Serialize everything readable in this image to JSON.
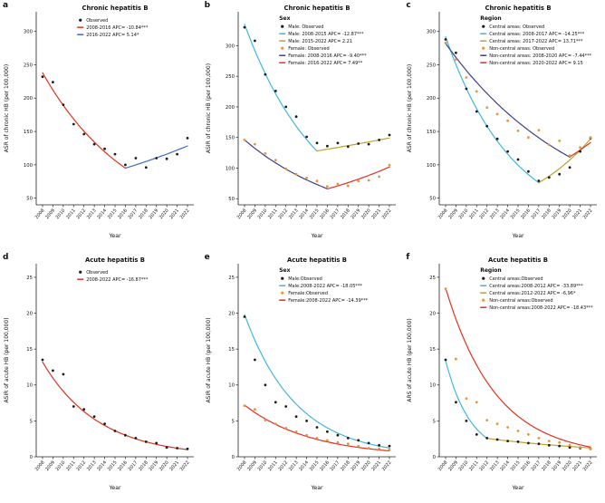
{
  "chart_data": [
    {
      "id": "a",
      "label": "a",
      "type": "scatter+line",
      "title": "Chronic hepatitis B",
      "legend_title": "",
      "xlabel": "Year",
      "ylabel": "ASR of chronic HB (per 100,000)",
      "x": [
        2008,
        2009,
        2010,
        2011,
        2012,
        2013,
        2014,
        2015,
        2016,
        2017,
        2018,
        2019,
        2020,
        2021,
        2022
      ],
      "ylim": [
        40,
        320
      ],
      "yticks": [
        50,
        100,
        150,
        200,
        250,
        300
      ],
      "grid": false,
      "legend_position": "top-inside",
      "series": [
        {
          "name": "Observed",
          "kind": "scatter",
          "color": "#1b1b1b",
          "values": [
            232,
            224,
            190,
            161,
            146,
            131,
            124,
            116,
            100,
            110,
            96,
            110,
            109,
            116,
            140
          ]
        },
        {
          "name": "2008-2016 APC= -10.84***",
          "kind": "line",
          "color": "#e0321f",
          "range": [
            2008,
            2016
          ],
          "start": 238,
          "apc": -10.84
        },
        {
          "name": "2016-2022 APC= 5.14*",
          "kind": "line",
          "color": "#3f6ac4",
          "range": [
            2016,
            2022
          ],
          "start": 95,
          "apc": 5.14
        }
      ]
    },
    {
      "id": "b",
      "label": "b",
      "type": "scatter+line",
      "title": "Chronic hepatitis B",
      "legend_title": "Sex",
      "xlabel": "Year",
      "ylabel": "ASIR of chronic HB (per 100,000)",
      "x": [
        2008,
        2009,
        2010,
        2011,
        2012,
        2013,
        2014,
        2015,
        2016,
        2017,
        2018,
        2019,
        2020,
        2021,
        2022
      ],
      "ylim": [
        40,
        345
      ],
      "yticks": [
        50,
        100,
        150,
        200,
        250,
        300
      ],
      "grid": false,
      "legend_position": "top-inside",
      "series": [
        {
          "name": "Male: Observed",
          "kind": "scatter",
          "color": "#1b1b1b",
          "values": [
            330,
            308,
            253,
            226,
            200,
            184,
            151,
            141,
            136,
            141,
            135,
            140,
            139,
            146,
            154
          ]
        },
        {
          "name": "Male: 2008-2015 APC= -12.87***",
          "kind": "line",
          "color": "#3fb8dd",
          "range": [
            2008,
            2015
          ],
          "start": 335,
          "apc": -12.87
        },
        {
          "name": "Male: 2015-2022 APC= 2.21",
          "kind": "line",
          "color": "#bfa32a",
          "range": [
            2015,
            2022
          ],
          "start": 128,
          "apc": 2.21
        },
        {
          "name": "Female: Observed",
          "kind": "scatter",
          "color": "#e6953f",
          "values": [
            146,
            139,
            124,
            113,
            99,
            90,
            84,
            79,
            70,
            74,
            71,
            79,
            80,
            86,
            105
          ]
        },
        {
          "name": "Female: 2008-2016 APC= -9.40***",
          "kind": "line",
          "color": "#413e8f",
          "range": [
            2008,
            2016
          ],
          "start": 146,
          "apc": -9.4
        },
        {
          "name": "Female: 2016-2022 APC= 7.49**",
          "kind": "line",
          "color": "#e0321f",
          "range": [
            2016,
            2022
          ],
          "start": 66,
          "apc": 7.49
        }
      ]
    },
    {
      "id": "c",
      "label": "c",
      "type": "scatter+line",
      "title": "Chronic hepatitis B",
      "legend_title": "Region",
      "xlabel": "Year",
      "ylabel": "ASR of chronic HB (per 100,000)",
      "x": [
        2008,
        2009,
        2010,
        2011,
        2012,
        2013,
        2014,
        2015,
        2016,
        2017,
        2018,
        2019,
        2020,
        2021,
        2022
      ],
      "ylim": [
        40,
        320
      ],
      "yticks": [
        50,
        100,
        150,
        200,
        250,
        300
      ],
      "grid": false,
      "legend_position": "top-inside",
      "series": [
        {
          "name": "Central areas: Observed",
          "kind": "scatter",
          "color": "#1b1b1b",
          "values": [
            288,
            268,
            214,
            180,
            158,
            139,
            120,
            108,
            90,
            76,
            81,
            86,
            96,
            120,
            140
          ]
        },
        {
          "name": "Central areas: 2008-2017 APC= -14.25***",
          "kind": "line",
          "color": "#3fb8dd",
          "range": [
            2008,
            2017
          ],
          "start": 292,
          "apc": -14.25
        },
        {
          "name": "Central areas: 2017-2022 APC= 13.71***",
          "kind": "line",
          "color": "#bfa32a",
          "range": [
            2017,
            2022
          ],
          "start": 73,
          "apc": 13.71
        },
        {
          "name": "Non-central areas: Observed",
          "kind": "scatter",
          "color": "#e6953f",
          "values": [
            283,
            258,
            231,
            210,
            186,
            176,
            166,
            151,
            141,
            152,
            130,
            136,
            114,
            126,
            141
          ]
        },
        {
          "name": "Non-central areas: 2008-2020 APC= -7.44***",
          "kind": "line",
          "color": "#413e8f",
          "range": [
            2008,
            2020
          ],
          "start": 282,
          "apc": -7.44
        },
        {
          "name": "Non-central areas: 2020-2022 APC= 9.15",
          "kind": "line",
          "color": "#e0321f",
          "range": [
            2020,
            2022
          ],
          "start": 112,
          "apc": 9.15
        }
      ]
    },
    {
      "id": "d",
      "label": "d",
      "type": "scatter+line",
      "title": "Acute hepatitis B",
      "legend_title": "",
      "xlabel": "Year",
      "ylabel": "ASIR of acute HB (per 100,000)",
      "x": [
        2008,
        2009,
        2010,
        2011,
        2012,
        2013,
        2014,
        2015,
        2016,
        2017,
        2018,
        2019,
        2020,
        2021,
        2022
      ],
      "ylim": [
        0,
        26
      ],
      "yticks": [
        0,
        5,
        10,
        15,
        20,
        25
      ],
      "grid": false,
      "legend_position": "top-inside",
      "series": [
        {
          "name": "Observed",
          "kind": "scatter",
          "color": "#1b1b1b",
          "values": [
            13.5,
            12.0,
            11.5,
            7.0,
            6.6,
            5.6,
            4.6,
            3.6,
            3.0,
            2.6,
            2.1,
            1.9,
            1.3,
            1.2,
            1.1
          ]
        },
        {
          "name": "2008-2022 APC= -16.87***",
          "kind": "line",
          "color": "#e0321f",
          "range": [
            2008,
            2022
          ],
          "start": 13.2,
          "apc": -16.87
        }
      ]
    },
    {
      "id": "e",
      "label": "e",
      "type": "scatter+line",
      "title": "Acute hepatitis B",
      "legend_title": "Sex",
      "xlabel": "Year",
      "ylabel": "ASIR of acute HB (per 100,000)",
      "x": [
        2008,
        2009,
        2010,
        2011,
        2012,
        2013,
        2014,
        2015,
        2016,
        2017,
        2018,
        2019,
        2020,
        2021,
        2022
      ],
      "ylim": [
        0,
        26
      ],
      "yticks": [
        0,
        5,
        10,
        15,
        20,
        25
      ],
      "grid": false,
      "legend_position": "top-inside",
      "series": [
        {
          "name": "Male:Observed",
          "kind": "scatter",
          "color": "#1b1b1b",
          "values": [
            19.5,
            13.5,
            10.0,
            7.6,
            7.0,
            5.6,
            5.0,
            4.1,
            3.5,
            3.0,
            2.6,
            2.3,
            1.9,
            1.6,
            1.5
          ]
        },
        {
          "name": "Male:2008-2022 APC= -18.05***",
          "kind": "line",
          "color": "#3fb8dd",
          "range": [
            2008,
            2022
          ],
          "start": 19.8,
          "apc": -18.05
        },
        {
          "name": "Female:Observed",
          "kind": "scatter",
          "color": "#e6953f",
          "values": [
            7.1,
            6.6,
            5.1,
            4.6,
            4.0,
            3.5,
            3.0,
            2.6,
            2.3,
            2.0,
            1.8,
            1.5,
            1.2,
            1.1,
            1.0
          ]
        },
        {
          "name": "Female:2008-2022 APC= -14.39***",
          "kind": "line",
          "color": "#e0321f",
          "range": [
            2008,
            2022
          ],
          "start": 7.2,
          "apc": -14.39
        }
      ]
    },
    {
      "id": "f",
      "label": "f",
      "type": "scatter+line",
      "title": "Acute hepatitis B",
      "legend_title": "Region",
      "xlabel": "Year",
      "ylabel": "ARS of acute HB (per 100,000)",
      "x": [
        2008,
        2009,
        2010,
        2011,
        2012,
        2013,
        2014,
        2015,
        2016,
        2017,
        2018,
        2019,
        2020,
        2021,
        2022
      ],
      "ylim": [
        0,
        26
      ],
      "yticks": [
        0,
        5,
        10,
        15,
        20,
        25
      ],
      "grid": false,
      "legend_position": "top-inside",
      "series": [
        {
          "name": "Central areas:Observed",
          "kind": "scatter",
          "color": "#1b1b1b",
          "values": [
            13.5,
            7.6,
            5.0,
            3.1,
            2.6,
            2.4,
            2.2,
            2.1,
            1.9,
            1.8,
            1.6,
            1.5,
            1.3,
            1.2,
            1.1
          ]
        },
        {
          "name": "Central areas:2008-2012 APC= -33.89***",
          "kind": "line",
          "color": "#3fb8dd",
          "range": [
            2008,
            2012
          ],
          "start": 13.4,
          "apc": -33.89
        },
        {
          "name": "Central areas:2012-2022 APC= -6.96*",
          "kind": "line",
          "color": "#bfa32a",
          "range": [
            2012,
            2022
          ],
          "start": 2.56,
          "apc": -6.96
        },
        {
          "name": "Non-central areas:Observed",
          "kind": "scatter",
          "color": "#e6953f",
          "values": [
            23.4,
            13.6,
            8.1,
            7.6,
            5.1,
            4.6,
            4.1,
            3.6,
            3.1,
            2.6,
            2.2,
            2.0,
            1.6,
            1.3,
            1.1
          ]
        },
        {
          "name": "Non-central areas:2008-2022 APC= -18.43***",
          "kind": "line",
          "color": "#e0321f",
          "range": [
            2008,
            2022
          ],
          "start": 23.5,
          "apc": -18.43
        }
      ]
    }
  ]
}
